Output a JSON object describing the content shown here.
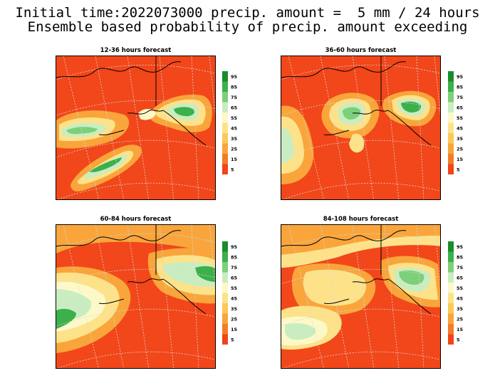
{
  "header": {
    "line1": "Initial time:2022073000 precip. amount =  5 mm / 24 hours",
    "line2": "Ensemble based probability of precip. amount exceeding"
  },
  "panels": [
    {
      "id": "p1",
      "title": "12-36 hours forecast"
    },
    {
      "id": "p2",
      "title": "36-60 hours forecast"
    },
    {
      "id": "p3",
      "title": "60-84 hours forecast"
    },
    {
      "id": "p4",
      "title": "84-108 hours forecast"
    }
  ],
  "legend": {
    "labels": [
      "95",
      "85",
      "75",
      "65",
      "55",
      "45",
      "35",
      "25",
      "15",
      "5"
    ],
    "colors": [
      "#1a8c2a",
      "#3cb04a",
      "#7dcf7a",
      "#c9edc0",
      "#fdf8c8",
      "#fde28a",
      "#fdc85a",
      "#f9a53b",
      "#f47c28",
      "#f0441a"
    ]
  },
  "colors": {
    "base": "#f2471a",
    "band_orange": "#f9a53b",
    "band_yellow": "#fde28a",
    "band_cream": "#fdf8c8",
    "band_lightgreen": "#c9edc0",
    "band_green": "#3cb04a",
    "grid": "#c8c8c8",
    "coast": "#000000"
  }
}
